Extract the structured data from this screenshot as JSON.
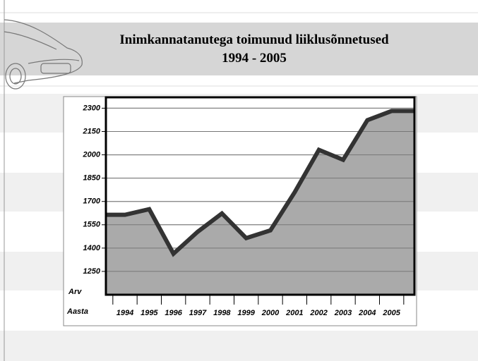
{
  "chart_data": {
    "type": "area",
    "title": "Inimkannatanutega toimunud liiklusõnnetused",
    "subtitle": "1994 - 2005",
    "x_label": "Aasta",
    "y_label": "Arv",
    "categories": [
      "1994",
      "1995",
      "1996",
      "1997",
      "1998",
      "1999",
      "2000",
      "2001",
      "2002",
      "2003",
      "2004",
      "2005"
    ],
    "values": [
      1614,
      1650,
      1364,
      1505,
      1623,
      1464,
      1514,
      1759,
      2032,
      1968,
      2223,
      2282
    ],
    "color": "#aaaaaa",
    "line_color": "#333333",
    "ylim": [
      1100,
      2370
    ],
    "yticks": [
      1250,
      1400,
      1550,
      1700,
      1850,
      2000,
      2150,
      2300
    ],
    "grid": true
  }
}
